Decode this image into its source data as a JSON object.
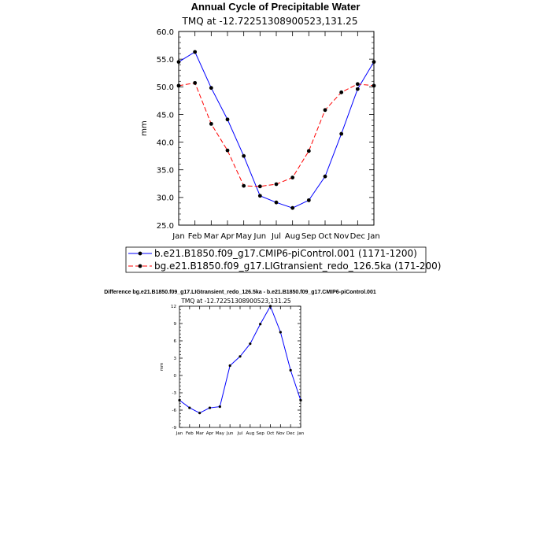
{
  "chart_data": [
    {
      "type": "line",
      "title": "Annual Cycle of Precipitable Water",
      "subtitle": "TMQ at -12.72251308900523,131.25",
      "xlabel": "",
      "ylabel": "mm",
      "categories": [
        "Jan",
        "Feb",
        "Mar",
        "Apr",
        "May",
        "Jun",
        "Jul",
        "Aug",
        "Sep",
        "Oct",
        "Nov",
        "Dec",
        "Jan"
      ],
      "ylim": [
        25,
        60
      ],
      "yticks": [
        "25.0",
        "30.0",
        "35.0",
        "40.0",
        "45.0",
        "50.0",
        "55.0",
        "60.0"
      ],
      "legend_position": "bottom",
      "series": [
        {
          "name": "b.e21.B1850.f09_g17.CMIP6-piControl.001 (1171-1200)",
          "color": "#0000ff",
          "dash": "solid",
          "values": [
            54.5,
            56.3,
            49.8,
            44.1,
            37.5,
            30.3,
            29.1,
            28.1,
            29.5,
            33.8,
            41.5,
            49.6,
            54.5
          ]
        },
        {
          "name": "bg.e21.B1850.f09_g17.LIGtransient_redo_126.5ka (171-200)",
          "color": "#ff0000",
          "dash": "dashed",
          "values": [
            50.2,
            50.7,
            43.3,
            38.5,
            32.1,
            32.0,
            32.4,
            33.6,
            38.4,
            45.8,
            49.0,
            50.5,
            50.2
          ]
        }
      ]
    },
    {
      "type": "line",
      "title": "Difference bg.e21.B1850.f09_g17.LIGtransient_redo_126.5ka - b.e21.B1850.f09_g17.CMIP6-piControl.001",
      "subtitle": "TMQ at -12.72251308900523,131.25",
      "xlabel": "",
      "ylabel": "mm",
      "categories": [
        "Jan",
        "Feb",
        "Mar",
        "Apr",
        "May",
        "Jun",
        "Jul",
        "Aug",
        "Sep",
        "Oct",
        "Nov",
        "Dec",
        "Jan"
      ],
      "ylim": [
        -9,
        12
      ],
      "yticks": [
        "-9",
        "-6",
        "-3",
        "0",
        "3",
        "6",
        "9",
        "12"
      ],
      "series": [
        {
          "name": "",
          "color": "#0000ff",
          "values": [
            -4.3,
            -5.6,
            -6.5,
            -5.6,
            -5.4,
            1.7,
            3.3,
            5.5,
            8.9,
            12.0,
            7.5,
            0.9,
            -4.3
          ]
        }
      ]
    }
  ]
}
